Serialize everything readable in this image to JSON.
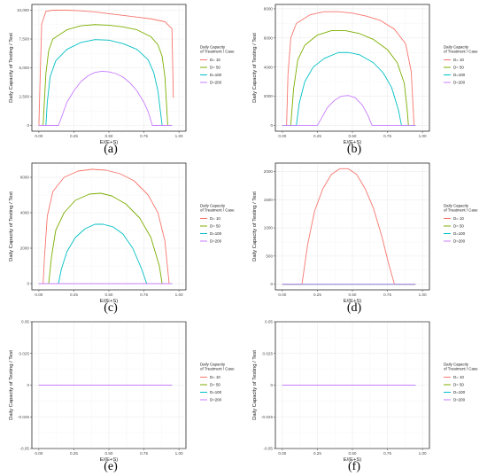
{
  "legend": {
    "title_line1": "Daily Capacity",
    "title_line2": "of Treatment / Case",
    "entries": [
      "D= 10",
      "D= 50",
      "D=100",
      "D=200"
    ],
    "colors": [
      "#F8766D",
      "#7CAE00",
      "#00BFC4",
      "#C77CFF"
    ]
  },
  "chart_data": [
    {
      "panel_label": "(a)",
      "type": "line",
      "xlabel": "E/(E+S)",
      "ylabel": "Daily Capacity of Testing / Test",
      "xlim": [
        -0.05,
        1.05
      ],
      "ylim": [
        -500,
        10500
      ],
      "xticks": [
        0.0,
        0.25,
        0.5,
        0.75,
        1.0
      ],
      "xtick_labels": [
        "0.00",
        "0.25",
        "0.50",
        "0.75",
        "1.00"
      ],
      "yticks": [
        0,
        2500,
        5000,
        7500,
        10000
      ],
      "ytick_labels": [
        "0",
        "2,500",
        "5,000",
        "7,500",
        "10,000"
      ],
      "series": [
        {
          "name": "D= 10",
          "x": [
            0.0,
            0.01,
            0.02,
            0.05,
            0.1,
            0.2,
            0.3,
            0.4,
            0.5,
            0.6,
            0.7,
            0.8,
            0.9,
            0.95,
            0.96
          ],
          "y": [
            0,
            4500,
            8800,
            9900,
            10000,
            10000,
            9950,
            9850,
            9700,
            9550,
            9400,
            9250,
            9000,
            8400,
            2400
          ]
        },
        {
          "name": "D= 50",
          "x": [
            0.0,
            0.03,
            0.05,
            0.07,
            0.1,
            0.2,
            0.3,
            0.4,
            0.5,
            0.6,
            0.7,
            0.8,
            0.85,
            0.88,
            0.9,
            0.92,
            0.95
          ],
          "y": [
            0,
            0,
            4500,
            6500,
            7500,
            8300,
            8650,
            8750,
            8700,
            8550,
            8300,
            7700,
            7000,
            6000,
            4200,
            0,
            0
          ]
        },
        {
          "name": "D=100",
          "x": [
            0.0,
            0.05,
            0.06,
            0.08,
            0.12,
            0.2,
            0.3,
            0.4,
            0.5,
            0.6,
            0.7,
            0.78,
            0.82,
            0.85,
            0.87,
            0.88,
            0.95
          ],
          "y": [
            0,
            0,
            2000,
            4200,
            5600,
            6600,
            7200,
            7450,
            7400,
            7100,
            6600,
            5700,
            4600,
            3000,
            1000,
            0,
            0
          ]
        },
        {
          "name": "D=200",
          "x": [
            0.0,
            0.14,
            0.17,
            0.2,
            0.25,
            0.3,
            0.35,
            0.4,
            0.45,
            0.5,
            0.55,
            0.6,
            0.65,
            0.7,
            0.75,
            0.78,
            0.81,
            0.95
          ],
          "y": [
            0,
            0,
            1000,
            2000,
            3000,
            3800,
            4300,
            4600,
            4700,
            4650,
            4500,
            4200,
            3700,
            3000,
            2000,
            1200,
            0,
            0
          ]
        }
      ]
    },
    {
      "panel_label": "(b)",
      "type": "line",
      "xlabel": "E/(E+S)",
      "ylabel": "Daily Capacity of Testing / Test",
      "xlim": [
        -0.05,
        1.05
      ],
      "ylim": [
        -400,
        8300
      ],
      "xticks": [
        0.0,
        0.25,
        0.5,
        0.75,
        1.0
      ],
      "xtick_labels": [
        "0.00",
        "0.25",
        "0.50",
        "0.75",
        "1.00"
      ],
      "yticks": [
        0,
        2000,
        4000,
        6000,
        8000
      ],
      "ytick_labels": [
        "0",
        "2000",
        "4000",
        "6000",
        "8000"
      ],
      "series": [
        {
          "name": "D= 10",
          "x": [
            0.0,
            0.03,
            0.04,
            0.06,
            0.1,
            0.2,
            0.3,
            0.4,
            0.5,
            0.6,
            0.7,
            0.8,
            0.88,
            0.92,
            0.94,
            0.95
          ],
          "y": [
            0,
            0,
            3500,
            6000,
            7000,
            7600,
            7800,
            7800,
            7700,
            7500,
            7200,
            6600,
            5600,
            3700,
            0,
            0
          ]
        },
        {
          "name": "D= 50",
          "x": [
            0.0,
            0.06,
            0.08,
            0.11,
            0.16,
            0.25,
            0.35,
            0.45,
            0.55,
            0.65,
            0.75,
            0.82,
            0.87,
            0.89,
            0.9,
            0.95
          ],
          "y": [
            0,
            0,
            2500,
            4500,
            5500,
            6200,
            6500,
            6500,
            6300,
            5900,
            5200,
            4300,
            2900,
            1200,
            0,
            0
          ]
        },
        {
          "name": "D=100",
          "x": [
            0.0,
            0.1,
            0.12,
            0.16,
            0.22,
            0.3,
            0.4,
            0.47,
            0.55,
            0.65,
            0.72,
            0.78,
            0.83,
            0.85,
            0.95
          ],
          "y": [
            0,
            0,
            1500,
            3000,
            4000,
            4600,
            5000,
            5000,
            4850,
            4300,
            3600,
            2600,
            1000,
            0,
            0
          ]
        },
        {
          "name": "D=200",
          "x": [
            0.0,
            0.25,
            0.28,
            0.32,
            0.37,
            0.42,
            0.47,
            0.52,
            0.57,
            0.61,
            0.64,
            0.95
          ],
          "y": [
            0,
            0,
            500,
            1200,
            1700,
            2000,
            2050,
            1900,
            1400,
            700,
            0,
            0
          ]
        }
      ]
    },
    {
      "panel_label": "(c)",
      "type": "line",
      "xlabel": "E/(E+S)",
      "ylabel": "Daily Capacity of Testing / Test",
      "xlim": [
        -0.05,
        1.05
      ],
      "ylim": [
        -350,
        6800
      ],
      "xticks": [
        0.0,
        0.25,
        0.5,
        0.75,
        1.0
      ],
      "xtick_labels": [
        "0.00",
        "0.25",
        "0.50",
        "0.75",
        "1.00"
      ],
      "yticks": [
        0,
        2000,
        4000,
        6000
      ],
      "ytick_labels": [
        "0",
        "2000",
        "4000",
        "6000"
      ],
      "series": [
        {
          "name": "D= 10",
          "x": [
            0.0,
            0.03,
            0.04,
            0.06,
            0.1,
            0.18,
            0.28,
            0.38,
            0.48,
            0.58,
            0.68,
            0.78,
            0.85,
            0.9,
            0.93,
            0.95
          ],
          "y": [
            0,
            0,
            1500,
            3800,
            5200,
            6000,
            6350,
            6450,
            6400,
            6200,
            5800,
            5000,
            4000,
            2400,
            0,
            0
          ]
        },
        {
          "name": "D= 50",
          "x": [
            0.0,
            0.07,
            0.09,
            0.12,
            0.18,
            0.26,
            0.36,
            0.44,
            0.52,
            0.62,
            0.72,
            0.8,
            0.86,
            0.88,
            0.95
          ],
          "y": [
            0,
            0,
            1500,
            3000,
            4000,
            4700,
            5050,
            5100,
            4950,
            4500,
            3700,
            2600,
            1000,
            0,
            0
          ]
        },
        {
          "name": "D=100",
          "x": [
            0.0,
            0.14,
            0.16,
            0.2,
            0.26,
            0.33,
            0.4,
            0.46,
            0.53,
            0.6,
            0.67,
            0.73,
            0.77,
            0.95
          ],
          "y": [
            0,
            0,
            800,
            1800,
            2600,
            3100,
            3350,
            3350,
            3200,
            2800,
            2000,
            900,
            0,
            0
          ]
        },
        {
          "name": "D=200",
          "x": [
            0.0,
            0.95
          ],
          "y": [
            0,
            0
          ]
        }
      ]
    },
    {
      "panel_label": "(d)",
      "type": "line",
      "xlabel": "E/(E+S)",
      "ylabel": "Daily Capacity of Testing / Test",
      "xlim": [
        -0.05,
        1.05
      ],
      "ylim": [
        -100,
        2150
      ],
      "xticks": [
        0.0,
        0.25,
        0.5,
        0.75,
        1.0
      ],
      "xtick_labels": [
        "0.00",
        "0.25",
        "0.50",
        "0.75",
        "1.00"
      ],
      "yticks": [
        0,
        500,
        1000,
        1500,
        2000
      ],
      "ytick_labels": [
        "0",
        "500",
        "1000",
        "1500",
        "2000"
      ],
      "series": [
        {
          "name": "D= 10",
          "x": [
            0.0,
            0.14,
            0.18,
            0.23,
            0.29,
            0.35,
            0.41,
            0.47,
            0.53,
            0.59,
            0.65,
            0.71,
            0.76,
            0.8,
            0.95
          ],
          "y": [
            0,
            0,
            700,
            1300,
            1700,
            1950,
            2050,
            2050,
            1950,
            1700,
            1350,
            850,
            350,
            0,
            0
          ]
        },
        {
          "name": "D= 50",
          "x": [
            0.0,
            0.95
          ],
          "y": [
            0,
            0
          ]
        },
        {
          "name": "D=100",
          "x": [
            0.0,
            0.95
          ],
          "y": [
            0,
            0
          ]
        },
        {
          "name": "D=200",
          "x": [
            0.0,
            0.95
          ],
          "y": [
            0,
            0
          ]
        }
      ]
    },
    {
      "panel_label": "(e)",
      "type": "line",
      "xlabel": "E/(E+S)",
      "ylabel": "Daily Capacity of Testing / Test",
      "xlim": [
        -0.05,
        1.05
      ],
      "ylim": [
        -0.05,
        0.05
      ],
      "xticks": [
        0.0,
        0.25,
        0.5,
        0.75,
        1.0
      ],
      "xtick_labels": [
        "0.00",
        "0.25",
        "0.50",
        "0.75",
        "1.00"
      ],
      "yticks": [
        -0.05,
        -0.025,
        0,
        0.025,
        0.05
      ],
      "ytick_labels": [
        "-0.05",
        "-0.025",
        "0",
        "0.025",
        "0.05"
      ],
      "series": [
        {
          "name": "D= 10",
          "x": [
            0.0,
            0.95
          ],
          "y": [
            0,
            0
          ]
        },
        {
          "name": "D= 50",
          "x": [
            0.0,
            0.95
          ],
          "y": [
            0,
            0
          ]
        },
        {
          "name": "D=100",
          "x": [
            0.0,
            0.95
          ],
          "y": [
            0,
            0
          ]
        },
        {
          "name": "D=200",
          "x": [
            0.0,
            0.95
          ],
          "y": [
            0,
            0
          ]
        }
      ]
    },
    {
      "panel_label": "(f)",
      "type": "line",
      "xlabel": "E/(E+S)",
      "ylabel": "Daily Capacity of Testing / Test",
      "xlim": [
        -0.05,
        1.05
      ],
      "ylim": [
        -0.05,
        0.05
      ],
      "xticks": [
        0.0,
        0.25,
        0.5,
        0.75,
        1.0
      ],
      "xtick_labels": [
        "0.00",
        "0.25",
        "0.50",
        "0.75",
        "1.00"
      ],
      "yticks": [
        -0.05,
        -0.025,
        0,
        0.025,
        0.05
      ],
      "ytick_labels": [
        "-0.05",
        "-0.025",
        "0",
        "0.025",
        "0.05"
      ],
      "series": [
        {
          "name": "D= 10",
          "x": [
            0.0,
            0.95
          ],
          "y": [
            0,
            0
          ]
        },
        {
          "name": "D= 50",
          "x": [
            0.0,
            0.95
          ],
          "y": [
            0,
            0
          ]
        },
        {
          "name": "D=100",
          "x": [
            0.0,
            0.95
          ],
          "y": [
            0,
            0
          ]
        },
        {
          "name": "D=200",
          "x": [
            0.0,
            0.95
          ],
          "y": [
            0,
            0
          ]
        }
      ]
    }
  ]
}
